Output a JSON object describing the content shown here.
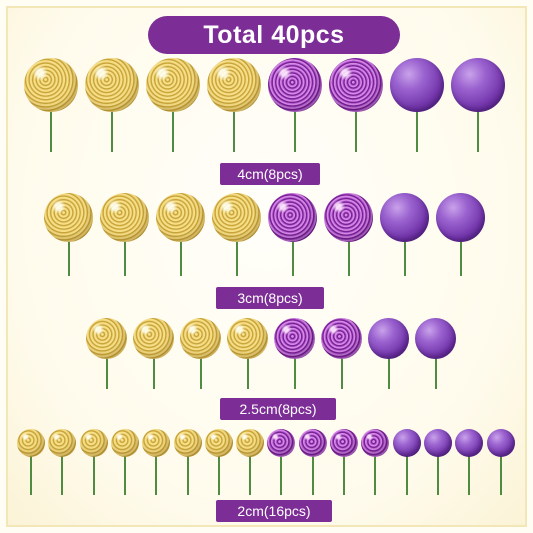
{
  "title": "Total 40pcs",
  "colors": {
    "accent": "#7d2d96",
    "gold": "#dcbc55",
    "purple_glitter": "#9540b3",
    "purple_pearl": "#7336ab",
    "stick": "#4a8a3e"
  },
  "rows": [
    {
      "label": "4cm(8pcs)",
      "items": [
        "gold-glitter",
        "gold-glitter",
        "gold-glitter",
        "gold-glitter",
        "purple-glitter",
        "purple-glitter",
        "purple-pearl",
        "purple-pearl"
      ]
    },
    {
      "label": "3cm(8pcs)",
      "items": [
        "gold-glitter",
        "gold-glitter",
        "gold-glitter",
        "gold-glitter",
        "purple-glitter",
        "purple-glitter",
        "purple-pearl",
        "purple-pearl"
      ]
    },
    {
      "label": "2.5cm(8pcs)",
      "items": [
        "gold-glitter",
        "gold-glitter",
        "gold-glitter",
        "gold-glitter",
        "purple-glitter",
        "purple-glitter",
        "purple-pearl",
        "purple-pearl"
      ]
    },
    {
      "label": "2cm(16pcs)",
      "items": [
        "gold-glitter",
        "gold-glitter",
        "gold-glitter",
        "gold-glitter",
        "gold-glitter",
        "gold-glitter",
        "gold-glitter",
        "gold-glitter",
        "purple-glitter",
        "purple-glitter",
        "purple-glitter",
        "purple-glitter",
        "purple-pearl",
        "purple-pearl",
        "purple-pearl",
        "purple-pearl"
      ]
    }
  ]
}
